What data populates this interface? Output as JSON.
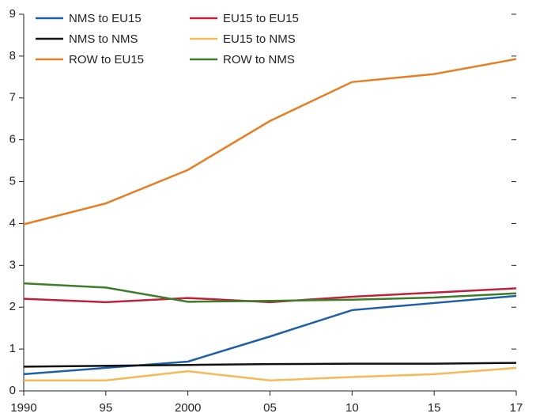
{
  "chart_data": {
    "type": "line",
    "categories": [
      "1990",
      "95",
      "2000",
      "05",
      "10",
      "15",
      "17"
    ],
    "series": [
      {
        "name": "NMS to EU15",
        "color": "#1f5fa8",
        "values": [
          0.4,
          0.55,
          0.7,
          1.3,
          1.93,
          2.1,
          2.27
        ]
      },
      {
        "name": "EU15 to EU15",
        "color": "#c0203a",
        "values": [
          2.2,
          2.12,
          2.22,
          2.12,
          2.25,
          2.35,
          2.45
        ]
      },
      {
        "name": "NMS to NMS",
        "color": "#111111",
        "values": [
          0.58,
          0.6,
          0.62,
          0.64,
          0.65,
          0.65,
          0.67
        ]
      },
      {
        "name": "EU15 to NMS",
        "color": "#f7b955",
        "values": [
          0.25,
          0.25,
          0.47,
          0.25,
          0.33,
          0.4,
          0.55
        ]
      },
      {
        "name": "ROW to EU15",
        "color": "#e87e24",
        "values": [
          3.98,
          4.48,
          5.28,
          6.45,
          7.38,
          7.57,
          7.93
        ]
      },
      {
        "name": "ROW to NMS",
        "color": "#3b7d2a",
        "values": [
          2.57,
          2.47,
          2.13,
          2.15,
          2.18,
          2.23,
          2.33
        ]
      }
    ],
    "ylim": [
      0,
      9
    ],
    "yticks": [
      0,
      1,
      2,
      3,
      4,
      5,
      6,
      7,
      8,
      9
    ],
    "grid": false
  }
}
